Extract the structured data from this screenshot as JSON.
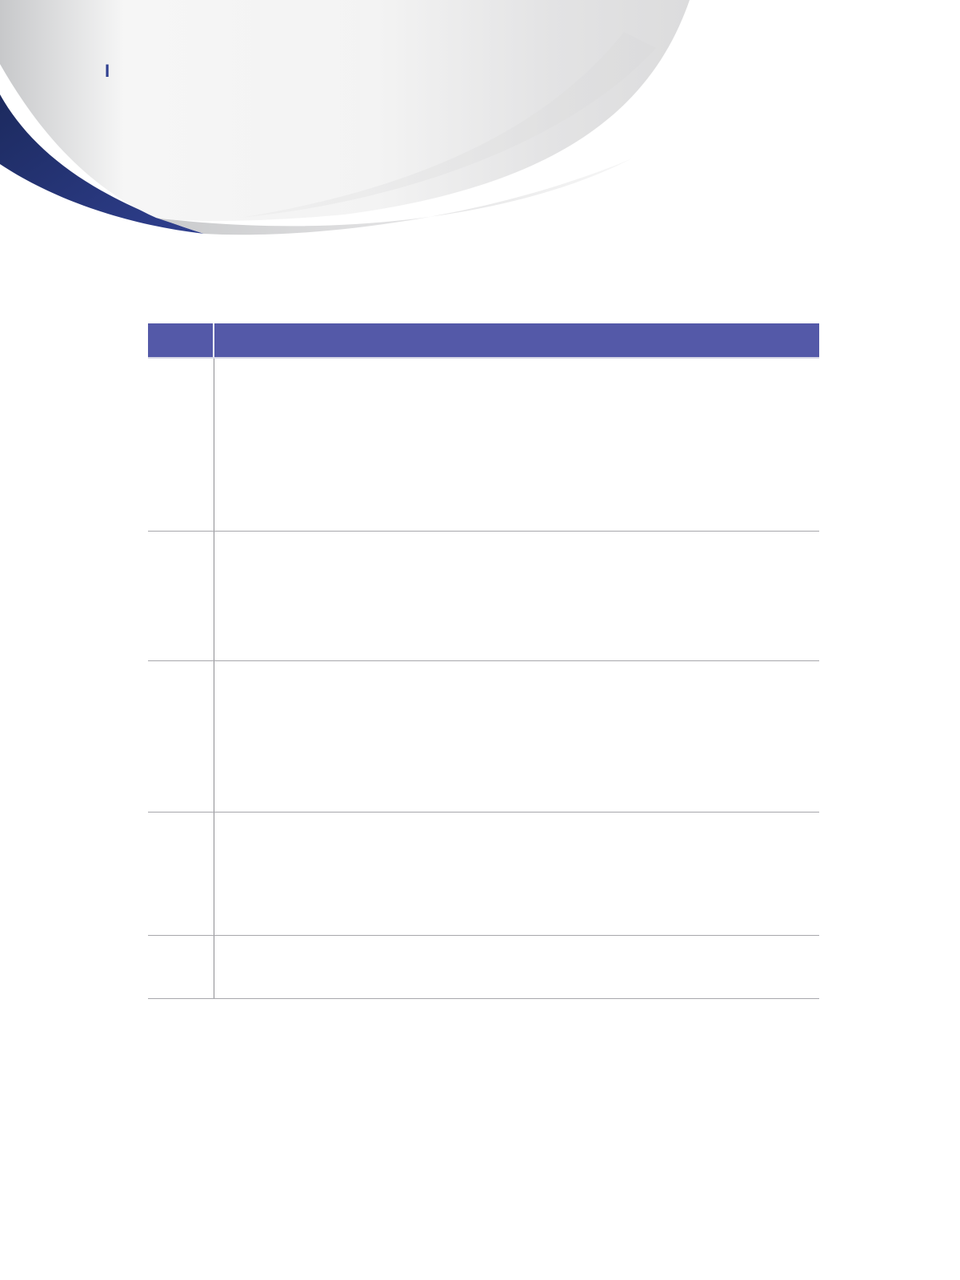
{
  "header": {
    "mark": "I"
  },
  "colors": {
    "accent_navy": "#2f3f8f",
    "table_header": "#5459a8",
    "rule": "#a7a7ab",
    "swoosh_grey": "#d9d9d9"
  },
  "table": {
    "headers": [
      "",
      ""
    ],
    "rows": [
      [
        "",
        ""
      ],
      [
        "",
        ""
      ],
      [
        "",
        ""
      ],
      [
        "",
        ""
      ],
      [
        "",
        ""
      ]
    ]
  }
}
